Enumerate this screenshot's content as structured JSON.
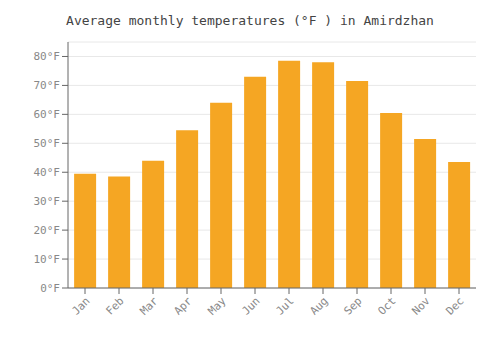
{
  "chart_data": {
    "type": "bar",
    "title": "Average monthly temperatures (°F ) in Amirdzhan",
    "categories": [
      "Jan",
      "Feb",
      "Mar",
      "Apr",
      "May",
      "Jun",
      "Jul",
      "Aug",
      "Sep",
      "Oct",
      "Nov",
      "Dec"
    ],
    "values": [
      39.5,
      38.5,
      44.0,
      54.5,
      64.0,
      73.0,
      78.5,
      78.0,
      71.5,
      60.5,
      51.5,
      43.5
    ],
    "color": "#F5A623",
    "ylim": [
      0,
      85
    ],
    "yticks": [
      {
        "value": 0,
        "label": "0°F"
      },
      {
        "value": 10,
        "label": "10°F"
      },
      {
        "value": 20,
        "label": "20°F"
      },
      {
        "value": 30,
        "label": "30°F"
      },
      {
        "value": 40,
        "label": "40°F"
      },
      {
        "value": 50,
        "label": "50°F"
      },
      {
        "value": 60,
        "label": "60°F"
      },
      {
        "value": 70,
        "label": "70°F"
      },
      {
        "value": 80,
        "label": "80°F"
      }
    ],
    "grid": true
  }
}
